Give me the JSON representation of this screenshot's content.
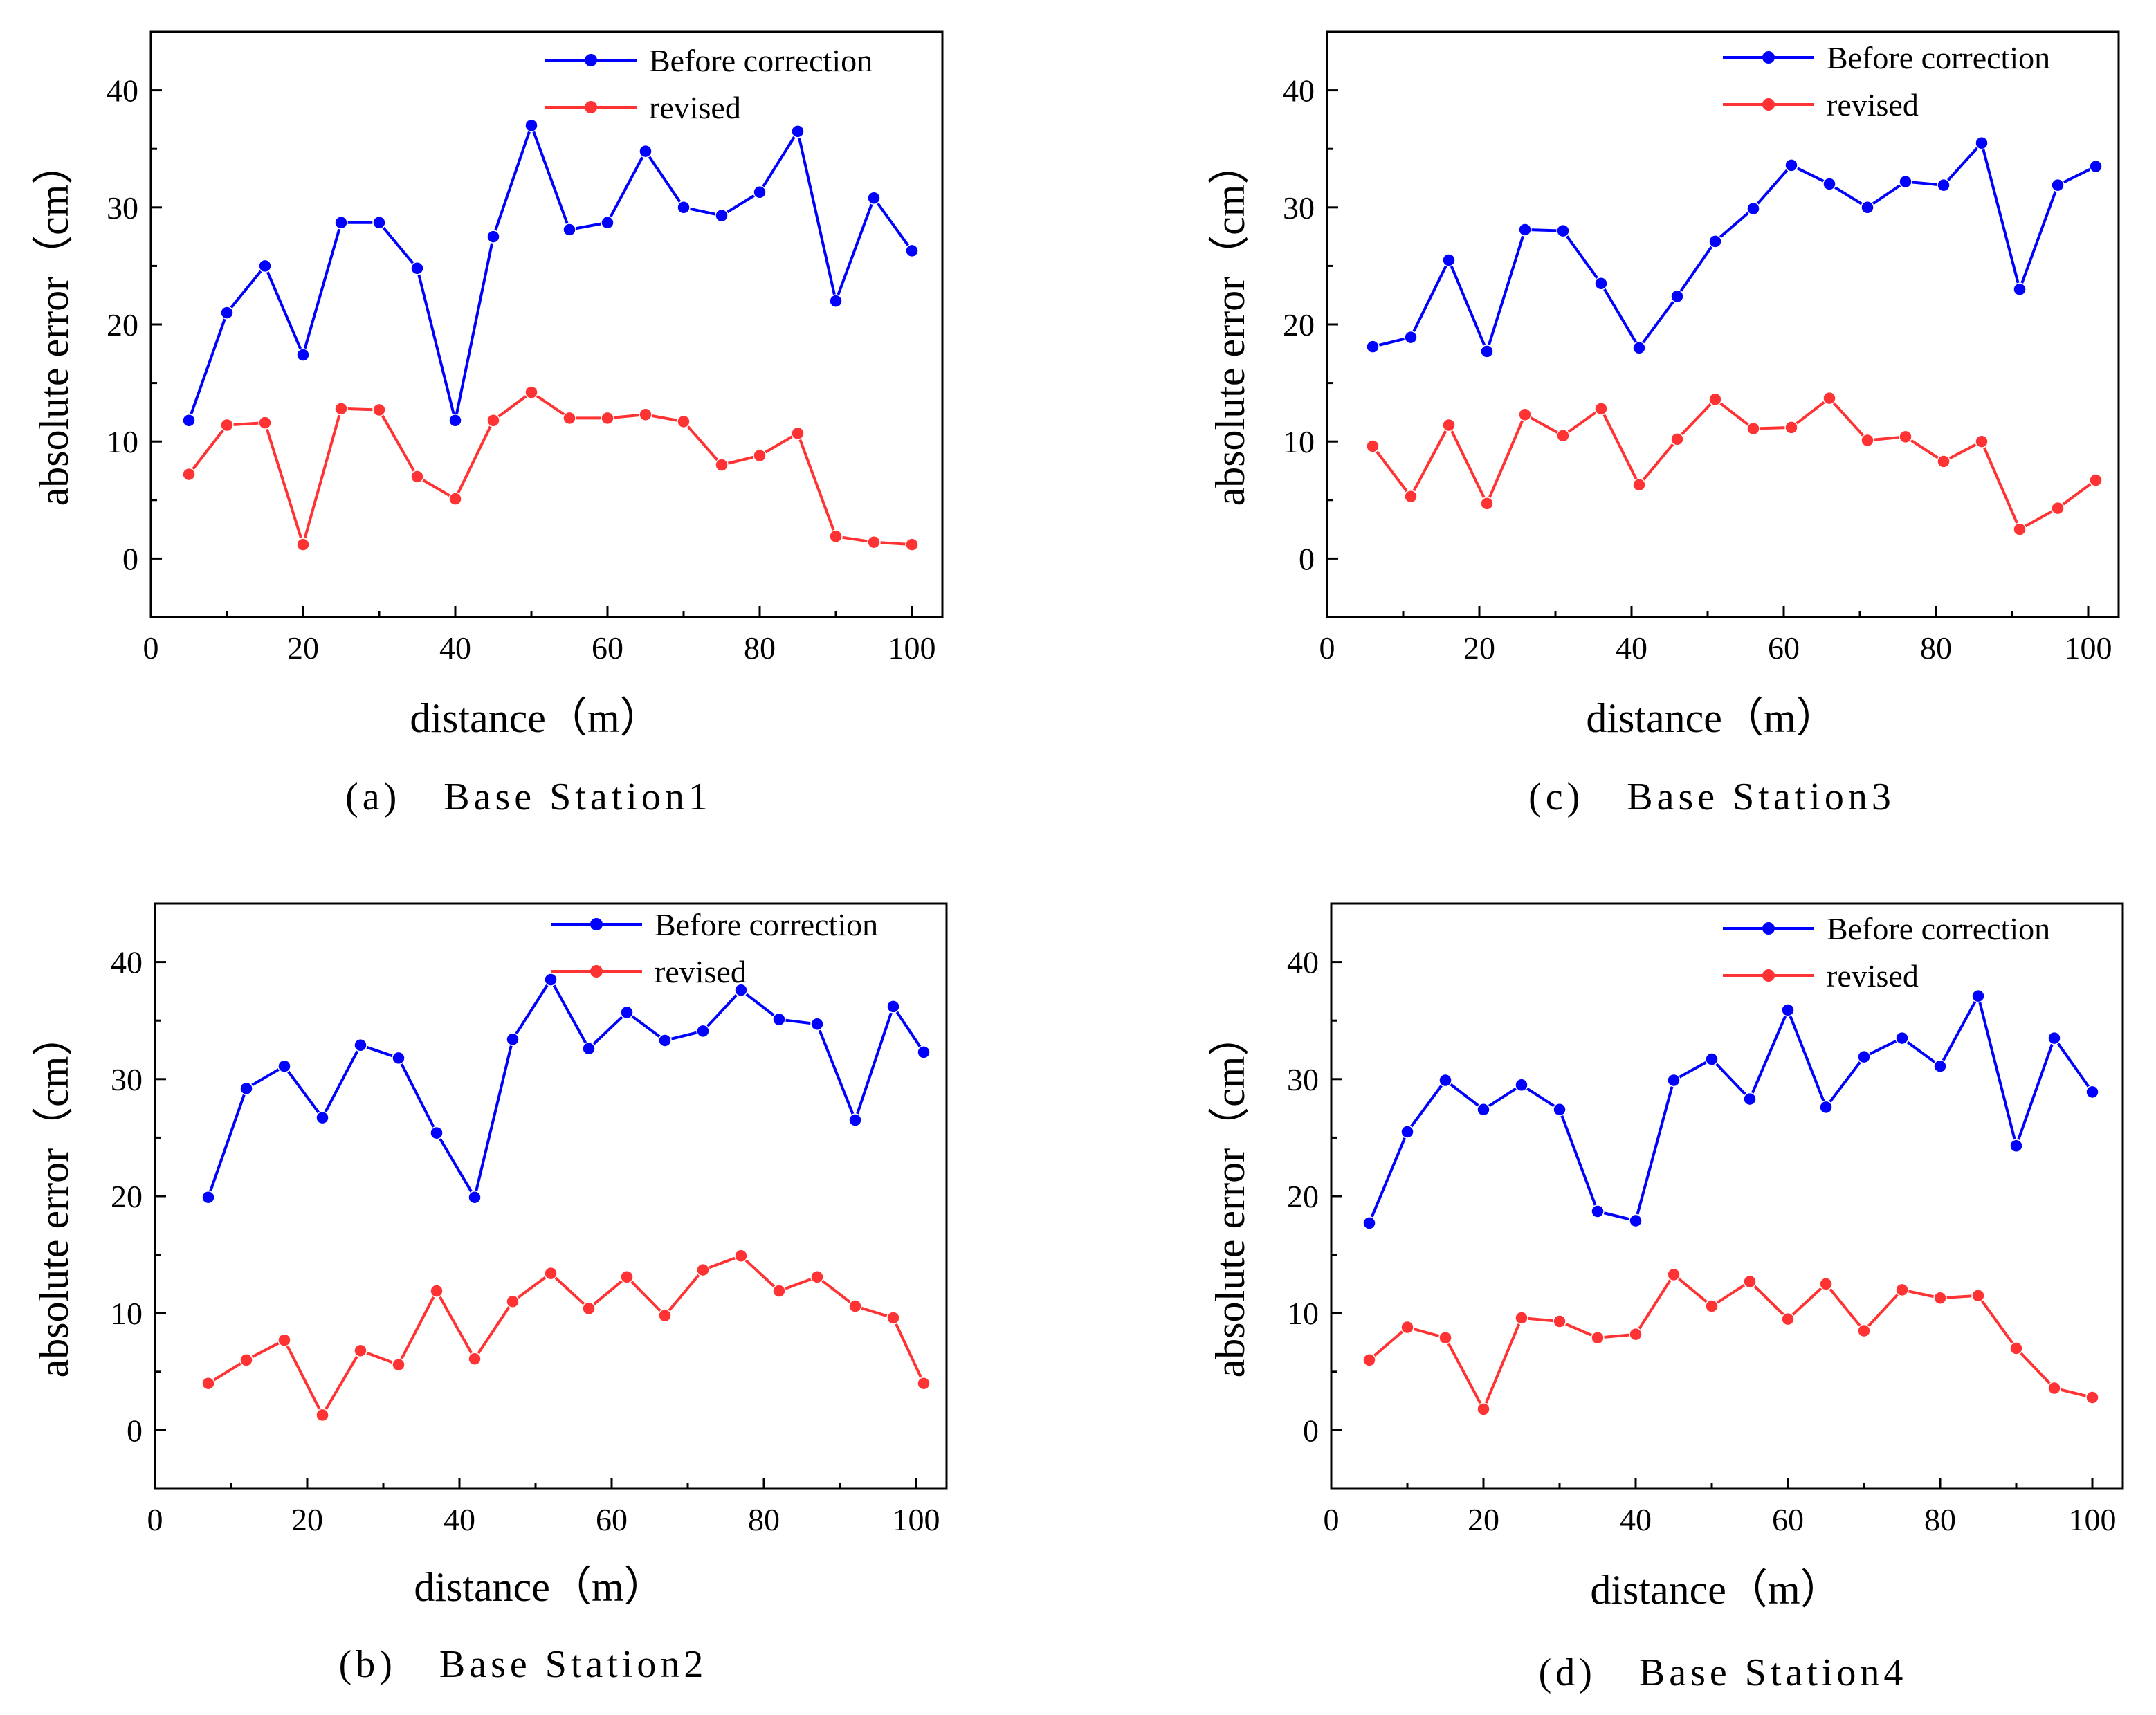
{
  "chart_data": [
    {
      "id": "a",
      "type": "line",
      "caption": "(a)　Base Station1",
      "xlabel": "distance（m）",
      "ylabel": "absolute error（cm）",
      "xlim": [
        0,
        104
      ],
      "ylim": [
        -5,
        45
      ],
      "xticks": [
        0,
        20,
        40,
        60,
        80,
        100
      ],
      "yticks": [
        0,
        10,
        20,
        30,
        40
      ],
      "legend_position": "top-right",
      "series": [
        {
          "name": "Before correction",
          "color": "#0000ff",
          "x": [
            5,
            10,
            15,
            20,
            25,
            30,
            35,
            40,
            45,
            50,
            55,
            60,
            65,
            70,
            75,
            80,
            85,
            90,
            95,
            100
          ],
          "y": [
            11.8,
            21.0,
            25.0,
            17.4,
            28.7,
            28.7,
            24.8,
            11.8,
            27.5,
            37.0,
            28.1,
            28.7,
            34.8,
            30.0,
            29.3,
            31.3,
            36.5,
            22.0,
            30.8,
            26.3
          ]
        },
        {
          "name": "revised",
          "color": "#ff3333",
          "x": [
            5,
            10,
            15,
            20,
            25,
            30,
            35,
            40,
            45,
            50,
            55,
            60,
            65,
            70,
            75,
            80,
            85,
            90,
            95,
            100
          ],
          "y": [
            7.2,
            11.4,
            11.6,
            1.2,
            12.8,
            12.7,
            7.0,
            5.1,
            11.8,
            14.2,
            12.0,
            12.0,
            12.3,
            11.7,
            8.0,
            8.8,
            10.7,
            1.9,
            1.4,
            1.2
          ]
        }
      ]
    },
    {
      "id": "b",
      "type": "line",
      "caption": "(b)　Base Station2",
      "xlabel": "distance（m）",
      "ylabel": "absolute error（cm）",
      "xlim": [
        0,
        104
      ],
      "ylim": [
        -5,
        45
      ],
      "xticks": [
        0,
        20,
        40,
        60,
        80,
        100
      ],
      "yticks": [
        0,
        10,
        20,
        30,
        40
      ],
      "legend_position": "top-right",
      "series": [
        {
          "name": "Before correction",
          "color": "#0000ff",
          "x": [
            7,
            12,
            17,
            22,
            27,
            32,
            37,
            42,
            47,
            52,
            57,
            62,
            67,
            72,
            77,
            82,
            87,
            92,
            97,
            101
          ],
          "y": [
            19.9,
            29.2,
            31.1,
            26.7,
            32.9,
            31.8,
            25.4,
            19.9,
            33.4,
            38.5,
            32.6,
            35.7,
            33.3,
            34.1,
            37.6,
            35.1,
            34.7,
            26.5,
            36.2,
            32.3
          ]
        },
        {
          "name": "revised",
          "color": "#ff3333",
          "x": [
            7,
            12,
            17,
            22,
            27,
            32,
            37,
            42,
            47,
            52,
            57,
            62,
            67,
            72,
            77,
            82,
            87,
            92,
            97,
            101
          ],
          "y": [
            4.0,
            6.0,
            7.7,
            1.3,
            6.8,
            5.6,
            11.9,
            6.1,
            11.0,
            13.4,
            10.4,
            13.1,
            9.8,
            13.7,
            14.9,
            11.9,
            13.1,
            10.6,
            9.6,
            4.0
          ]
        }
      ]
    },
    {
      "id": "c",
      "type": "line",
      "caption": "(c)　Base Station3",
      "xlabel": "distance（m）",
      "ylabel": "absolute error（cm）",
      "xlim": [
        0,
        104
      ],
      "ylim": [
        -5,
        45
      ],
      "xticks": [
        0,
        20,
        40,
        60,
        80,
        100
      ],
      "yticks": [
        0,
        10,
        20,
        30,
        40
      ],
      "legend_position": "top-right",
      "series": [
        {
          "name": "Before correction",
          "color": "#0000ff",
          "x": [
            6,
            11,
            16,
            21,
            26,
            31,
            36,
            41,
            46,
            51,
            56,
            61,
            66,
            71,
            76,
            81,
            86,
            91,
            96,
            101
          ],
          "y": [
            18.1,
            18.9,
            25.5,
            17.7,
            28.1,
            28.0,
            23.5,
            18.0,
            22.4,
            27.1,
            29.9,
            33.6,
            32.0,
            30.0,
            32.2,
            31.9,
            35.5,
            23.0,
            31.9,
            33.5
          ]
        },
        {
          "name": "revised",
          "color": "#ff3333",
          "x": [
            6,
            11,
            16,
            21,
            26,
            31,
            36,
            41,
            46,
            51,
            56,
            61,
            66,
            71,
            76,
            81,
            86,
            91,
            96,
            101
          ],
          "y": [
            9.6,
            5.3,
            11.4,
            4.7,
            12.3,
            10.5,
            12.8,
            6.3,
            10.2,
            13.6,
            11.1,
            11.2,
            13.7,
            10.1,
            10.4,
            8.3,
            10.0,
            2.5,
            4.3,
            6.7
          ]
        }
      ]
    },
    {
      "id": "d",
      "type": "line",
      "caption": "(d)　Base Station4",
      "xlabel": "distance（m）",
      "ylabel": "absolute error（cm）",
      "xlim": [
        0,
        104
      ],
      "ylim": [
        -5,
        45
      ],
      "xticks": [
        0,
        20,
        40,
        60,
        80,
        100
      ],
      "yticks": [
        0,
        10,
        20,
        30,
        40
      ],
      "legend_position": "top-right",
      "series": [
        {
          "name": "Before correction",
          "color": "#0000ff",
          "x": [
            5,
            10,
            15,
            20,
            25,
            30,
            35,
            40,
            45,
            50,
            55,
            60,
            65,
            70,
            75,
            80,
            85,
            90,
            95,
            100
          ],
          "y": [
            17.7,
            25.5,
            29.9,
            27.4,
            29.5,
            27.4,
            18.7,
            17.9,
            29.9,
            31.7,
            28.3,
            35.9,
            27.6,
            31.9,
            33.5,
            31.1,
            37.1,
            24.3,
            33.5,
            28.9
          ]
        },
        {
          "name": "revised",
          "color": "#ff3333",
          "x": [
            5,
            10,
            15,
            20,
            25,
            30,
            35,
            40,
            45,
            50,
            55,
            60,
            65,
            70,
            75,
            80,
            85,
            90,
            95,
            100
          ],
          "y": [
            6.0,
            8.8,
            7.9,
            1.8,
            9.6,
            9.3,
            7.9,
            8.2,
            13.3,
            10.6,
            12.7,
            9.5,
            12.5,
            8.5,
            12.0,
            11.3,
            11.5,
            7.0,
            3.6,
            2.8
          ]
        }
      ]
    }
  ]
}
